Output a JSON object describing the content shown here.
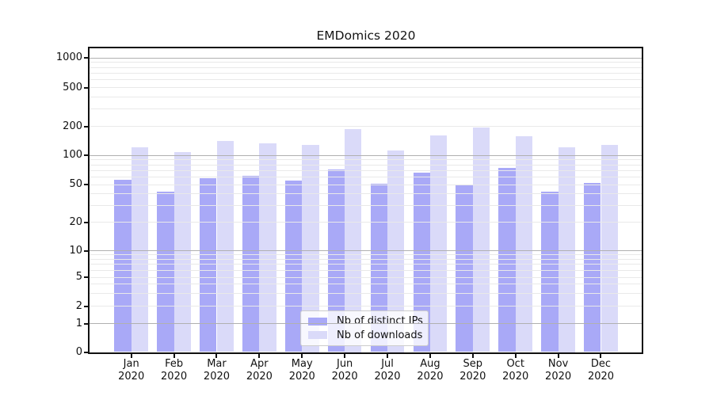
{
  "title": "EMDomics 2020",
  "chart_data": {
    "type": "bar",
    "categories": [
      "Jan",
      "Feb",
      "Mar",
      "Apr",
      "May",
      "Jun",
      "Jul",
      "Aug",
      "Sep",
      "Oct",
      "Nov",
      "Dec"
    ],
    "year": "2020",
    "series": [
      {
        "name": "Nb of distinct IPs",
        "color": "#a9a9f7",
        "values": [
          56,
          42,
          58,
          62,
          55,
          71,
          51,
          67,
          50,
          74,
          42,
          52
        ]
      },
      {
        "name": "Nb of downloads",
        "color": "#dadaf9",
        "values": [
          120,
          108,
          140,
          132,
          128,
          187,
          112,
          160,
          194,
          158,
          122,
          129
        ]
      }
    ],
    "yaxis": {
      "scale": "symlog",
      "tick_values": [
        0,
        1,
        2,
        5,
        10,
        20,
        50,
        100,
        200,
        500,
        1000
      ],
      "tick_labels": [
        "0",
        "1",
        "2",
        "5",
        "10",
        "20",
        "50",
        "100",
        "200",
        "500",
        "1000"
      ],
      "ylim": [
        0,
        1300
      ]
    },
    "grid": {
      "orientation": "horizontal",
      "major_at": [
        1,
        10,
        100,
        1000
      ],
      "minor_at": [
        2,
        3,
        4,
        5,
        6,
        7,
        8,
        9,
        20,
        30,
        40,
        50,
        60,
        70,
        80,
        90,
        200,
        300,
        400,
        500,
        600,
        700,
        800,
        900
      ],
      "major_color": "#b0b0b0",
      "minor_color": "#e9e9e9",
      "drawn_above_bars": true
    },
    "legend": {
      "position": "inside-bottom-center",
      "entries": [
        "Nb of distinct IPs",
        "Nb of downloads"
      ]
    }
  }
}
